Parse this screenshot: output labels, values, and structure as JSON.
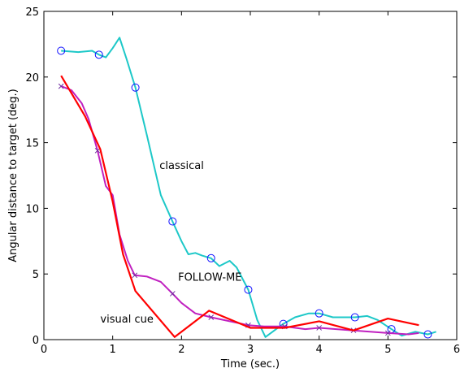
{
  "chart_data": {
    "type": "line",
    "title": "",
    "xlabel": "Time (sec.)",
    "ylabel": "Angular distance to target (deg.)",
    "xlim": [
      0,
      6
    ],
    "ylim": [
      0,
      25
    ],
    "xticks": [
      0,
      1,
      2,
      3,
      4,
      5,
      6
    ],
    "yticks": [
      0,
      5,
      10,
      15,
      20,
      25
    ],
    "grid": false,
    "legend": "none",
    "series": [
      {
        "name": "classical",
        "color": "#1dc8c8",
        "marker": "circle",
        "x": [
          0.25,
          0.5,
          0.7,
          0.8,
          0.9,
          1.0,
          1.1,
          1.2,
          1.33,
          1.5,
          1.7,
          1.87,
          2.0,
          2.1,
          2.2,
          2.3,
          2.43,
          2.55,
          2.7,
          2.8,
          2.97,
          3.1,
          3.22,
          3.35,
          3.48,
          3.65,
          3.85,
          4.0,
          4.2,
          4.52,
          4.7,
          4.85,
          5.05,
          5.2,
          5.4,
          5.58,
          5.7
        ],
        "y": [
          22.0,
          21.9,
          22.0,
          21.7,
          21.5,
          22.2,
          23.0,
          21.4,
          19.2,
          15.5,
          11.0,
          9.0,
          7.5,
          6.5,
          6.6,
          6.4,
          6.2,
          5.6,
          6.0,
          5.5,
          3.8,
          1.5,
          0.2,
          0.7,
          1.2,
          1.7,
          2.0,
          2.0,
          1.7,
          1.7,
          1.8,
          1.5,
          0.8,
          0.3,
          0.6,
          0.4,
          0.6
        ],
        "markers_x": [
          0.25,
          0.8,
          1.33,
          1.87,
          2.43,
          2.97,
          3.48,
          4.0,
          4.52,
          5.05,
          5.58
        ],
        "markers_y": [
          22.0,
          21.7,
          19.2,
          9.0,
          6.2,
          3.8,
          1.2,
          2.0,
          1.7,
          0.8,
          0.4
        ]
      },
      {
        "name": "FOLLOW-ME",
        "color": "#c020c0",
        "marker": "x",
        "x": [
          0.25,
          0.4,
          0.55,
          0.65,
          0.78,
          0.9,
          1.0,
          1.1,
          1.22,
          1.32,
          1.5,
          1.7,
          1.87,
          2.0,
          2.2,
          2.43,
          2.7,
          2.97,
          3.2,
          3.5,
          3.8,
          4.0,
          4.5,
          5.0,
          5.3,
          5.45
        ],
        "y": [
          19.3,
          19.0,
          18.0,
          16.8,
          14.4,
          11.7,
          11.0,
          8.0,
          6.0,
          4.9,
          4.8,
          4.4,
          3.5,
          2.8,
          2.0,
          1.7,
          1.4,
          1.1,
          1.0,
          1.0,
          0.8,
          0.9,
          0.7,
          0.5,
          0.4,
          0.5
        ],
        "markers_x": [
          0.25,
          0.78,
          1.32,
          1.87,
          2.43,
          2.97,
          3.5,
          4.0,
          4.5,
          5.0
        ],
        "markers_y": [
          19.3,
          14.4,
          4.9,
          3.5,
          1.7,
          1.1,
          1.0,
          0.9,
          0.7,
          0.5
        ]
      },
      {
        "name": "visual cue",
        "color": "#ff0000",
        "marker": "none",
        "x": [
          0.25,
          0.6,
          0.82,
          1.0,
          1.15,
          1.33,
          1.9,
          2.4,
          3.0,
          3.5,
          4.0,
          4.5,
          5.0,
          5.45
        ],
        "y": [
          20.1,
          17.0,
          14.5,
          10.5,
          6.5,
          3.7,
          0.2,
          2.2,
          0.9,
          0.9,
          1.4,
          0.7,
          1.6,
          1.1
        ]
      }
    ],
    "annotations": [
      {
        "text": "classical",
        "x": 1.68,
        "y": 13.0
      },
      {
        "text": "FOLLOW-ME",
        "x": 1.95,
        "y": 4.5
      },
      {
        "text": "visual cue",
        "x": 0.82,
        "y": 1.3
      }
    ]
  }
}
